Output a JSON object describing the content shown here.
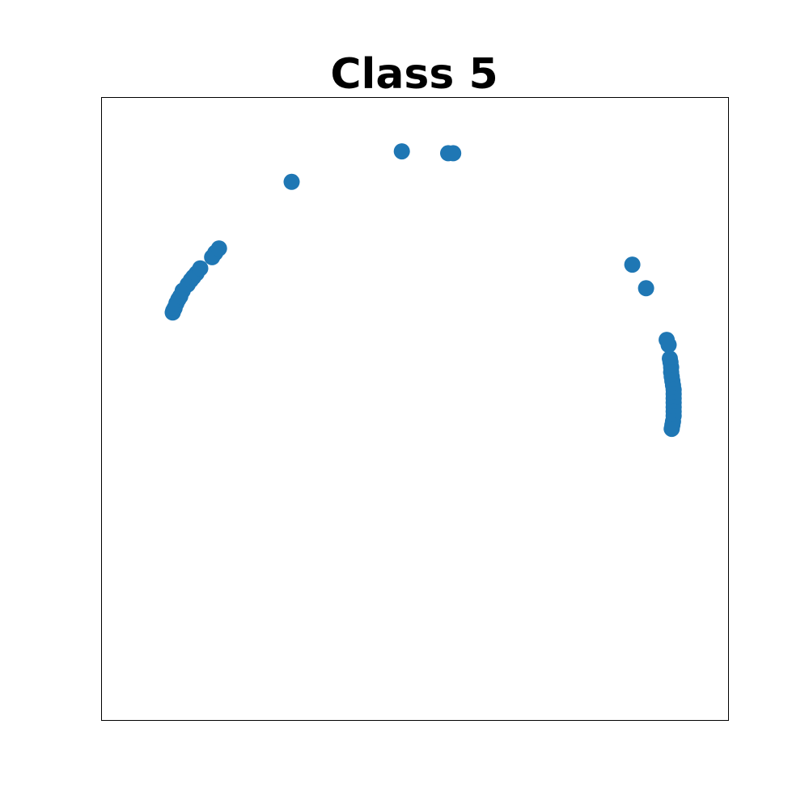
{
  "chart_data": {
    "type": "scatter",
    "title": "Class 5",
    "xlabel": "",
    "ylabel": "",
    "xlim": [
      0,
      1
    ],
    "ylim": [
      0,
      1
    ],
    "grid": false,
    "axis_ticks": false,
    "marker_color": "#1f77b4",
    "series": [
      {
        "points": [
          [
            0.113,
            0.655
          ],
          [
            0.114,
            0.658
          ],
          [
            0.116,
            0.662
          ],
          [
            0.119,
            0.67
          ],
          [
            0.122,
            0.676
          ],
          [
            0.125,
            0.681
          ],
          [
            0.129,
            0.69
          ],
          [
            0.137,
            0.7
          ],
          [
            0.142,
            0.707
          ],
          [
            0.146,
            0.712
          ],
          [
            0.151,
            0.718
          ],
          [
            0.157,
            0.726
          ],
          [
            0.176,
            0.744
          ],
          [
            0.181,
            0.751
          ],
          [
            0.187,
            0.758
          ],
          [
            0.303,
            0.865
          ],
          [
            0.479,
            0.914
          ],
          [
            0.553,
            0.911
          ],
          [
            0.561,
            0.911
          ],
          [
            0.847,
            0.732
          ],
          [
            0.869,
            0.694
          ],
          [
            0.902,
            0.611
          ],
          [
            0.905,
            0.603
          ],
          [
            0.907,
            0.581
          ],
          [
            0.908,
            0.575
          ],
          [
            0.909,
            0.567
          ],
          [
            0.909,
            0.559
          ],
          [
            0.91,
            0.552
          ],
          [
            0.911,
            0.545
          ],
          [
            0.912,
            0.538
          ],
          [
            0.913,
            0.531
          ],
          [
            0.913,
            0.524
          ],
          [
            0.913,
            0.517
          ],
          [
            0.913,
            0.51
          ],
          [
            0.913,
            0.503
          ],
          [
            0.913,
            0.496
          ],
          [
            0.913,
            0.489
          ],
          [
            0.912,
            0.48
          ],
          [
            0.911,
            0.474
          ],
          [
            0.91,
            0.468
          ]
        ]
      }
    ]
  }
}
